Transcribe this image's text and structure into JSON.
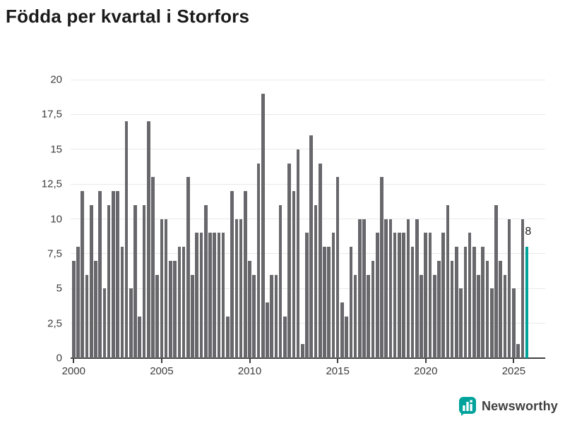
{
  "title": "Födda per kvartal i Storfors",
  "chart_data": {
    "type": "bar",
    "title": "Födda per kvartal i Storfors",
    "xlabel": "",
    "ylabel": "",
    "x_start": "2000 Q1",
    "x_end": "2025 Q4",
    "frequency": "quarterly",
    "values": [
      7,
      8,
      12,
      6,
      11,
      7,
      12,
      5,
      11,
      12,
      12,
      8,
      17,
      5,
      11,
      3,
      11,
      17,
      13,
      6,
      10,
      10,
      7,
      7,
      8,
      8,
      13,
      6,
      9,
      9,
      11,
      9,
      9,
      9,
      9,
      3,
      12,
      10,
      10,
      12,
      7,
      6,
      14,
      19,
      4,
      6,
      6,
      11,
      3,
      14,
      12,
      15,
      1,
      9,
      16,
      11,
      14,
      8,
      8,
      9,
      13,
      4,
      3,
      8,
      6,
      10,
      10,
      6,
      7,
      9,
      13,
      10,
      10,
      9,
      9,
      9,
      10,
      8,
      10,
      6,
      9,
      9,
      6,
      7,
      9,
      11,
      7,
      8,
      5,
      8,
      9,
      8,
      6,
      8,
      7,
      5,
      11,
      7,
      6,
      10,
      5,
      1,
      10,
      8
    ],
    "years_per_row": 4,
    "highlight_last_value": 8,
    "annotation_label": "8",
    "ylim": [
      0,
      20
    ],
    "y_ticks": [
      0,
      2.5,
      5,
      7.5,
      10,
      12.5,
      15,
      17.5,
      20
    ],
    "y_tick_labels": [
      "0",
      "2,5",
      "5",
      "7,5",
      "10",
      "12,5",
      "15",
      "17,5",
      "20"
    ],
    "x_tick_labels": [
      "2000",
      "2005",
      "2010",
      "2015",
      "2020",
      "2025"
    ],
    "x_tick_quarter_indexes": [
      0,
      20,
      40,
      60,
      80,
      100
    ],
    "grid": "horizontal",
    "legend": "none",
    "colors": {
      "bar": "#67676c",
      "highlight": "#00a39b",
      "gridline": "#e9e9e9",
      "axis": "#3f3f3f",
      "tick_text": "#3c3c3c",
      "annotation_text": "#222222"
    }
  },
  "footer": {
    "brand": "Newsworthy",
    "brand_icon": "newsworthy-pin-chart-icon",
    "brand_color": "#00a39b"
  }
}
